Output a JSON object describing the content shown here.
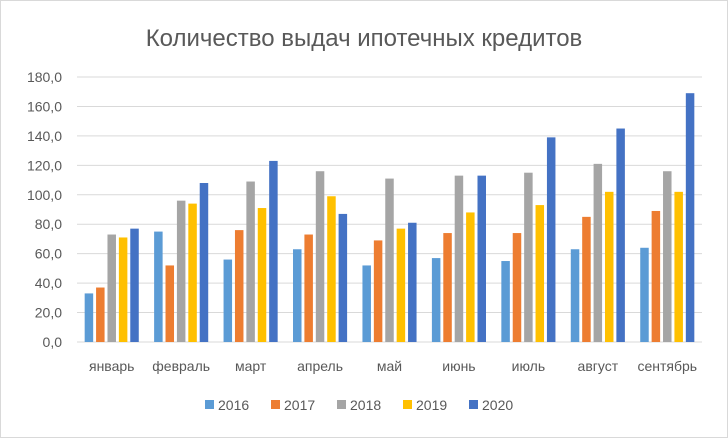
{
  "chart_data": {
    "type": "bar",
    "title": "Количество выдач ипотечных кредитов",
    "xlabel": "",
    "ylabel": "",
    "ylim": [
      0,
      180
    ],
    "ytick_step": 20,
    "ytick_labels": [
      "0,0",
      "20,0",
      "40,0",
      "60,0",
      "80,0",
      "100,0",
      "120,0",
      "140,0",
      "160,0",
      "180,0"
    ],
    "grid": true,
    "legend_position": "bottom",
    "categories": [
      "январь",
      "февраль",
      "март",
      "апрель",
      "май",
      "июнь",
      "июль",
      "август",
      "сентябрь"
    ],
    "series": [
      {
        "name": "2016",
        "color": "#5B9BD5",
        "values": [
          33,
          75,
          56,
          63,
          52,
          57,
          55,
          63,
          64
        ]
      },
      {
        "name": "2017",
        "color": "#ED7D31",
        "values": [
          37,
          52,
          76,
          73,
          69,
          74,
          74,
          85,
          89
        ]
      },
      {
        "name": "2018",
        "color": "#A5A5A5",
        "values": [
          73,
          96,
          109,
          116,
          111,
          113,
          115,
          121,
          116
        ]
      },
      {
        "name": "2019",
        "color": "#FFC000",
        "values": [
          71,
          94,
          91,
          99,
          77,
          88,
          93,
          102,
          102
        ]
      },
      {
        "name": "2020",
        "color": "#4472C4",
        "values": [
          77,
          108,
          123,
          87,
          81,
          113,
          139,
          145,
          169
        ]
      }
    ]
  }
}
